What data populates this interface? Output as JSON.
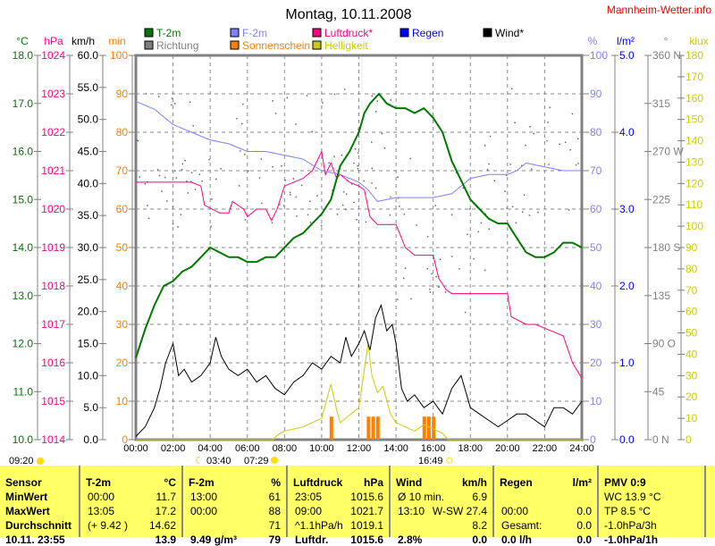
{
  "title": "Montag, 10.11.2008",
  "site": "Mannheim-Wetter.info",
  "legend": [
    {
      "label": "T-2m",
      "color": "#007700"
    },
    {
      "label": "F-2m",
      "color": "#8080ff"
    },
    {
      "label": "Luftdruck*",
      "color": "#ff0080"
    },
    {
      "label": "Regen",
      "color": "#0000ff"
    },
    {
      "label": "Wind*",
      "color": "#000000"
    },
    {
      "label": "Richtung",
      "color": "#808080"
    },
    {
      "label": "Sonnenschein",
      "color": "#ff8000"
    },
    {
      "label": "Helligkeit",
      "color": "#cccc00"
    }
  ],
  "chart_data": {
    "type": "line",
    "title": "Montag, 10.11.2008",
    "x_ticks": [
      "00:00",
      "02:00",
      "04:00",
      "06:00",
      "08:00",
      "10:00",
      "12:00",
      "14:00",
      "16:00",
      "18:00",
      "20:00",
      "22:00",
      "24:00"
    ],
    "xlim": [
      0,
      24
    ],
    "axes": {
      "temp": {
        "unit": "°C",
        "color": "#007700",
        "range": [
          10,
          18
        ],
        "ticks": [
          "18.0",
          "17.0",
          "16.0",
          "15.0",
          "14.0",
          "13.0",
          "12.0",
          "11.0",
          "10.0"
        ]
      },
      "press": {
        "unit": "hPa",
        "color": "#ff0080",
        "range": [
          1014,
          1024
        ],
        "ticks": [
          "1024",
          "1023",
          "1022",
          "1021",
          "1020",
          "1019",
          "1018",
          "1017",
          "1016",
          "1015",
          "1014"
        ]
      },
      "wind": {
        "unit": "km/h",
        "color": "#000000",
        "range": [
          0,
          60
        ],
        "ticks": [
          "60.0",
          "55.0",
          "50.0",
          "45.0",
          "40.0",
          "35.0",
          "30.0",
          "25.0",
          "20.0",
          "15.0",
          "10.0",
          "5.0",
          "0.0"
        ]
      },
      "sun": {
        "unit": "min",
        "color": "#ff8000",
        "range": [
          0,
          100
        ],
        "ticks": [
          "100",
          "90",
          "80",
          "70",
          "60",
          "50",
          "40",
          "30",
          "20",
          "10",
          "0"
        ]
      },
      "hum": {
        "unit": "%",
        "color": "#8080ff",
        "range": [
          0,
          100
        ],
        "ticks": [
          "100",
          "90",
          "80",
          "70",
          "60",
          "50",
          "40",
          "30",
          "20",
          "10",
          "0"
        ]
      },
      "rain": {
        "unit": "l/m²",
        "color": "#0000ff",
        "range": [
          0,
          5
        ],
        "ticks": [
          "5.0",
          "4.0",
          "3.0",
          "2.0",
          "1.0",
          "0.0"
        ]
      },
      "dir": {
        "unit": "°",
        "color": "#808080",
        "range": [
          0,
          360
        ],
        "ticks": [
          "360 N",
          "315",
          "270 W",
          "225",
          "180 S",
          "135",
          "90 O",
          "45",
          "0 N"
        ]
      },
      "lux": {
        "unit": "klux",
        "color": "#cccc00",
        "range": [
          0,
          180
        ],
        "ticks": [
          "180",
          "170",
          "160",
          "150",
          "140",
          "130",
          "120",
          "110",
          "100",
          "90",
          "80",
          "70",
          "60",
          "50",
          "40",
          "30",
          "20",
          "10",
          "0"
        ]
      }
    },
    "series": [
      {
        "name": "T-2m",
        "axis": "temp",
        "x": [
          0,
          0.5,
          1,
          1.5,
          2,
          2.5,
          3,
          3.5,
          4,
          4.5,
          5,
          5.5,
          6,
          6.5,
          7,
          7.5,
          8,
          8.5,
          9,
          9.5,
          10,
          10.5,
          11,
          11.5,
          12,
          12.3,
          12.6,
          13.08,
          13.5,
          14,
          14.5,
          15,
          15.5,
          16,
          16.5,
          17,
          17.5,
          18,
          18.5,
          19,
          19.5,
          20,
          20.5,
          21,
          21.5,
          22,
          22.5,
          23,
          23.5,
          24
        ],
        "values": [
          11.7,
          12.3,
          12.8,
          13.2,
          13.3,
          13.5,
          13.6,
          13.8,
          14.0,
          13.9,
          13.8,
          13.8,
          13.7,
          13.7,
          13.8,
          13.8,
          14.0,
          14.2,
          14.3,
          14.5,
          14.7,
          15.0,
          15.7,
          16.0,
          16.4,
          16.8,
          17.0,
          17.2,
          17.0,
          16.9,
          16.9,
          16.8,
          16.9,
          16.7,
          16.4,
          15.8,
          15.4,
          15.0,
          14.8,
          14.6,
          14.5,
          14.5,
          14.2,
          13.9,
          13.8,
          13.8,
          13.9,
          14.1,
          14.1,
          14.0
        ]
      },
      {
        "name": "F-2m",
        "axis": "hum",
        "x": [
          0,
          1,
          2,
          3,
          4,
          5,
          6,
          7,
          8,
          9,
          10,
          11,
          12,
          12.5,
          13,
          14,
          15,
          16,
          17,
          17.5,
          18,
          19,
          20,
          20.5,
          21,
          22,
          23,
          24
        ],
        "values": [
          88,
          86,
          82,
          80,
          78,
          77,
          75,
          75,
          74,
          73,
          70,
          69,
          67,
          65,
          62,
          63,
          63,
          63,
          64,
          66,
          68,
          69,
          69,
          70,
          72,
          71,
          70,
          70
        ]
      },
      {
        "name": "Luftdruck*",
        "axis": "press",
        "x": [
          0,
          1,
          2,
          3,
          3.5,
          3.7,
          4.5,
          5,
          5.2,
          5.8,
          6,
          6.5,
          7,
          7.3,
          7.6,
          8,
          9,
          9.5,
          10,
          10.2,
          10.5,
          10.8,
          11,
          11.5,
          12,
          12.3,
          12.6,
          13,
          14,
          14.5,
          15,
          15.5,
          16,
          16.3,
          16.7,
          17,
          18,
          19,
          20,
          20.2,
          21,
          21.5,
          22,
          22.5,
          23,
          23.5,
          24
        ],
        "values": [
          1020.7,
          1020.7,
          1020.7,
          1020.7,
          1020.6,
          1020.1,
          1019.9,
          1019.9,
          1020.2,
          1020.0,
          1019.8,
          1020.0,
          1020.0,
          1019.7,
          1020.0,
          1020.6,
          1020.8,
          1021.0,
          1021.5,
          1020.9,
          1021.2,
          1020.8,
          1020.9,
          1020.7,
          1020.6,
          1020.5,
          1019.8,
          1019.6,
          1019.6,
          1019.0,
          1018.8,
          1018.8,
          1018.8,
          1018.2,
          1017.9,
          1017.8,
          1017.8,
          1017.8,
          1017.8,
          1017.2,
          1017.0,
          1017.0,
          1016.9,
          1016.8,
          1016.7,
          1016.0,
          1015.6
        ]
      },
      {
        "name": "Wind*",
        "axis": "wind",
        "x": [
          0,
          0.5,
          1,
          1.3,
          1.6,
          2,
          2.3,
          2.6,
          3,
          3.5,
          4,
          4.3,
          4.6,
          5,
          5.5,
          6,
          6.5,
          7,
          7.5,
          8,
          8.5,
          9,
          9.5,
          10,
          10.5,
          11,
          11.3,
          11.6,
          12,
          12.3,
          12.6,
          12.9,
          13.2,
          13.5,
          13.8,
          14,
          14.3,
          14.6,
          15,
          15.5,
          16,
          16.5,
          17,
          17.5,
          18,
          18.5,
          19,
          19.5,
          20,
          20.5,
          21,
          21.5,
          22,
          22.5,
          23,
          23.5,
          24
        ],
        "values": [
          0.5,
          2,
          5,
          8,
          12,
          15,
          10,
          11,
          9,
          10,
          12,
          16,
          13,
          11,
          10,
          11,
          9,
          10,
          8,
          7,
          9,
          10,
          12,
          11,
          13,
          12,
          16,
          13,
          15,
          17,
          14,
          19,
          21,
          17,
          18,
          15,
          8,
          6,
          7,
          5,
          6,
          4,
          8,
          10,
          5,
          4,
          3,
          2,
          3,
          4,
          4,
          3,
          2,
          5,
          5,
          4,
          6
        ]
      },
      {
        "name": "Helligkeit",
        "axis": "lux",
        "x": [
          0,
          7.4,
          7.6,
          8,
          9,
          10,
          10.5,
          10.8,
          11,
          12,
          12.5,
          12.7,
          13,
          13.3,
          13.7,
          14,
          14.5,
          15,
          15.5,
          16,
          16.5,
          16.8,
          24
        ],
        "values": [
          0,
          0,
          2,
          4,
          6,
          10,
          26,
          14,
          8,
          15,
          45,
          30,
          22,
          25,
          12,
          8,
          6,
          4,
          7,
          5,
          3,
          0,
          0
        ]
      }
    ],
    "sunshine": {
      "axis": "sun",
      "x": [
        10.5,
        12.5,
        12.75,
        13.0,
        15.5,
        15.75,
        16.0
      ],
      "values": [
        6,
        6,
        6,
        6,
        6,
        6,
        6
      ]
    }
  },
  "astro": {
    "now": "09:20",
    "moonrise": "03:40",
    "sunrise": "07:29",
    "sunset": "16:49"
  },
  "table": {
    "cols": [
      {
        "h": "Sensor",
        "u": "",
        "rows": [
          [
            "MinWert",
            ""
          ],
          [
            "MaxWert",
            ""
          ],
          [
            "Durchschnitt",
            ""
          ],
          [
            "10.11. 23:55",
            ""
          ]
        ]
      },
      {
        "h": "T-2m",
        "u": "°C",
        "rows": [
          [
            "00:00",
            "11.7"
          ],
          [
            "13:05",
            "17.2"
          ],
          [
            "(+ 9.42 )",
            "14.62"
          ],
          [
            "",
            "13.9"
          ]
        ]
      },
      {
        "h": "F-2m",
        "u": "%",
        "rows": [
          [
            "13:00",
            "61"
          ],
          [
            "00:00",
            "88"
          ],
          [
            "",
            "71"
          ],
          [
            "9.49 g/m³",
            "79"
          ]
        ]
      },
      {
        "h": "Luftdruck",
        "u": "hPa",
        "rows": [
          [
            "23:05",
            "1015.6"
          ],
          [
            "09:00",
            "1021.7"
          ],
          [
            "^1.1hPa/h",
            "1019.1"
          ],
          [
            "Luftdr.",
            "1015.6"
          ]
        ]
      },
      {
        "h": "Wind",
        "u": "km/h",
        "rows": [
          [
            "Ø 10 min.",
            "6.9"
          ],
          [
            "13:10",
            "W-SW 27.4"
          ],
          [
            "",
            "8.2"
          ],
          [
            "2.8%",
            "0.0"
          ]
        ]
      },
      {
        "h": "Regen",
        "u": "l/m²",
        "rows": [
          [
            "",
            ""
          ],
          [
            "00:00",
            "0.0"
          ],
          [
            "Gesamt:",
            "0.0"
          ],
          [
            "0.0 l/h",
            "0.0"
          ]
        ]
      },
      {
        "h": "PMV 0:9",
        "u": "",
        "rows": [
          [
            "WC 13.9 °C",
            ""
          ],
          [
            "TP 8.5 °C",
            ""
          ],
          [
            "-1.0hPa/3h",
            ""
          ],
          [
            "-1.0hPa/1h",
            ""
          ]
        ]
      }
    ]
  }
}
